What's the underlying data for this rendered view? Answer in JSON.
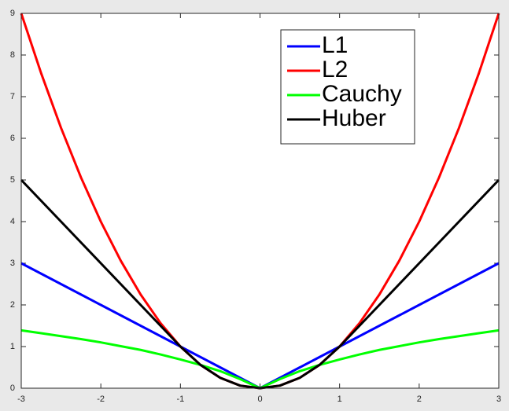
{
  "chart_data": {
    "type": "line",
    "x": [
      -3,
      -2.75,
      -2.5,
      -2.25,
      -2,
      -1.75,
      -1.5,
      -1.25,
      -1,
      -0.75,
      -0.5,
      -0.25,
      0,
      0.25,
      0.5,
      0.75,
      1,
      1.25,
      1.5,
      1.75,
      2,
      2.25,
      2.5,
      2.75,
      3
    ],
    "series": [
      {
        "name": "L1",
        "color": "#0000ff",
        "values": [
          3,
          2.75,
          2.5,
          2.25,
          2,
          1.75,
          1.5,
          1.25,
          1,
          0.75,
          0.5,
          0.25,
          0,
          0.25,
          0.5,
          0.75,
          1,
          1.25,
          1.5,
          1.75,
          2,
          2.25,
          2.5,
          2.75,
          3
        ]
      },
      {
        "name": "L2",
        "color": "#ff0000",
        "values": [
          9,
          7.5625,
          6.25,
          5.0625,
          4,
          3.0625,
          2.25,
          1.5625,
          1,
          0.5625,
          0.25,
          0.0625,
          0,
          0.0625,
          0.25,
          0.5625,
          1,
          1.5625,
          2.25,
          3.0625,
          4,
          5.0625,
          6.25,
          7.5625,
          9
        ]
      },
      {
        "name": "Cauchy",
        "color": "#00ff00",
        "values": [
          1.39,
          1.32,
          1.25,
          1.18,
          1.1,
          1.01,
          0.92,
          0.81,
          0.69,
          0.56,
          0.41,
          0.22,
          0,
          0.22,
          0.41,
          0.56,
          0.69,
          0.81,
          0.92,
          1.01,
          1.1,
          1.18,
          1.25,
          1.32,
          1.39
        ]
      },
      {
        "name": "Huber",
        "color": "#000000",
        "values": [
          5,
          4.5,
          4,
          3.5,
          3,
          2.5,
          2,
          1.5,
          1,
          0.5625,
          0.25,
          0.0625,
          0,
          0.0625,
          0.25,
          0.5625,
          1,
          1.5,
          2,
          2.5,
          3,
          3.5,
          4,
          4.5,
          5
        ]
      }
    ],
    "xlim": [
      -3,
      3
    ],
    "ylim": [
      0,
      9
    ],
    "xticks": [
      -3,
      -2,
      -1,
      0,
      1,
      2,
      3
    ],
    "yticks": [
      0,
      1,
      2,
      3,
      4,
      5,
      6,
      7,
      8,
      9
    ],
    "legend": "top-right"
  }
}
